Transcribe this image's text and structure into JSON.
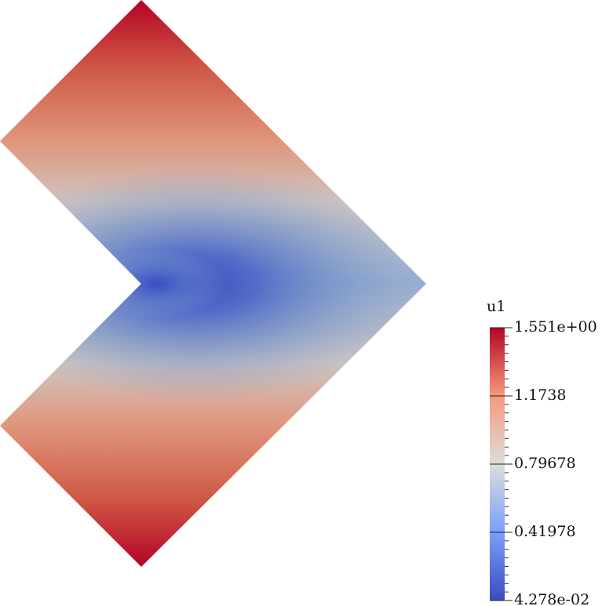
{
  "colorbar": {
    "title": "u1",
    "range": [
      0.04278,
      1.551
    ],
    "ticks": [
      {
        "value": 1.551,
        "label": "1.551e+00"
      },
      1.1738,
      0.79678,
      0.41978,
      {
        "value": 0.04278,
        "label": "4.278e-02"
      }
    ]
  }
}
